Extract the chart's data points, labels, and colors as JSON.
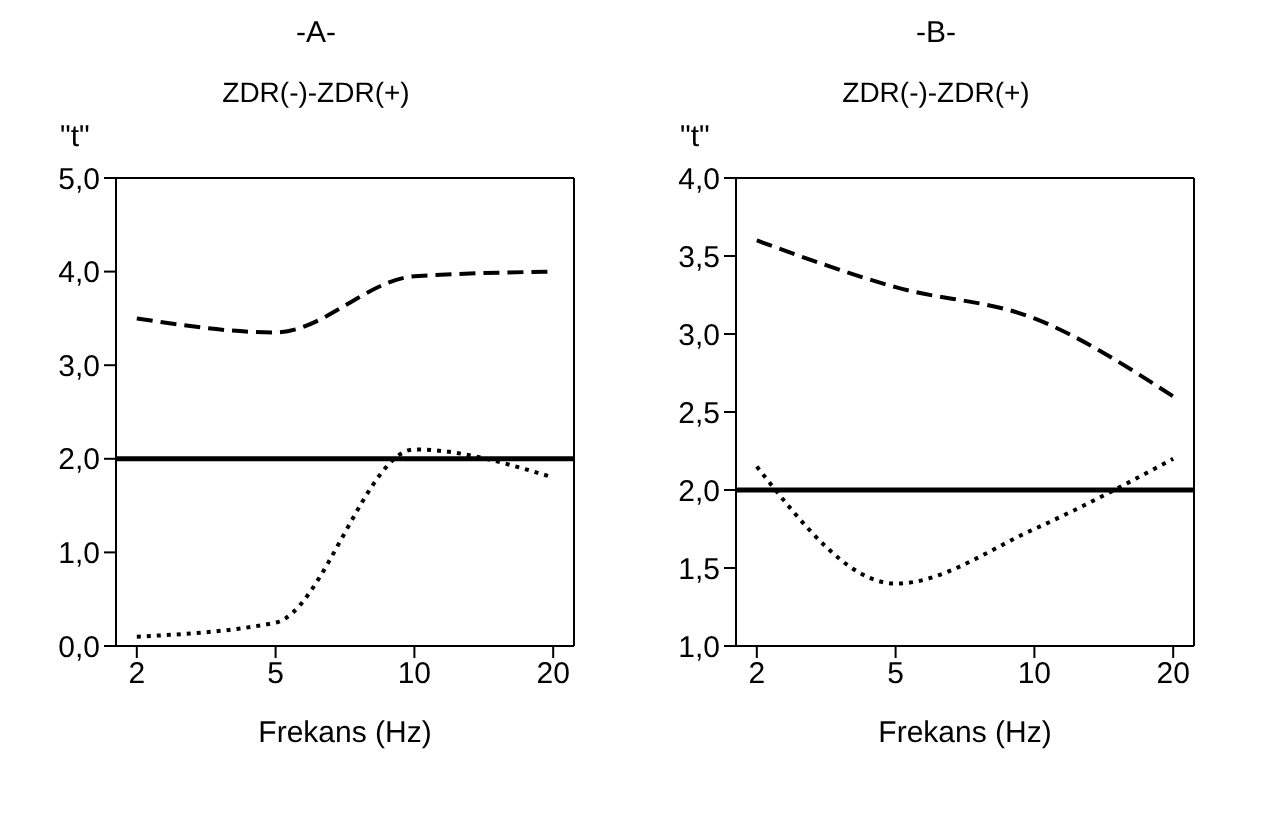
{
  "chart_data": [
    {
      "type": "line",
      "title": "-A-",
      "subtitle": "ZDR(-)-ZDR(+)",
      "ylabel": "\"t\"",
      "xlabel": "Frekans (Hz)",
      "categories": [
        "2",
        "5",
        "10",
        "20"
      ],
      "series": [
        {
          "color": "#000000",
          "line_style": "dashed",
          "values": [
            3.5,
            3.35,
            3.95,
            4.0
          ]
        },
        {
          "color": "#000000",
          "line_style": "dotted",
          "values": [
            0.1,
            0.25,
            2.1,
            1.8
          ]
        }
      ],
      "ref_lines": [
        {
          "axis": "y",
          "value": 2,
          "color": "#000000",
          "line_style": "solid"
        }
      ],
      "ylim": [
        0,
        5
      ],
      "yticks": [
        {
          "value": 0,
          "label": "0,0"
        },
        {
          "value": 1,
          "label": "1,0"
        },
        {
          "value": 2,
          "label": "2,0"
        },
        {
          "value": 3,
          "label": "3,0"
        },
        {
          "value": 4,
          "label": "4,0"
        },
        {
          "value": 5,
          "label": "5,0"
        }
      ],
      "grid": false,
      "legend": false,
      "marker": "none"
    },
    {
      "type": "line",
      "title": "-B-",
      "subtitle": "ZDR(-)-ZDR(+)",
      "ylabel": "\"t\"",
      "xlabel": "Frekans (Hz)",
      "categories": [
        "2",
        "5",
        "10",
        "20"
      ],
      "series": [
        {
          "color": "#000000",
          "line_style": "dashed",
          "values": [
            3.6,
            3.3,
            3.1,
            2.6
          ]
        },
        {
          "color": "#000000",
          "line_style": "dotted",
          "values": [
            2.15,
            1.4,
            1.75,
            2.2
          ]
        }
      ],
      "ref_lines": [
        {
          "axis": "y",
          "value": 2,
          "color": "#000000",
          "line_style": "solid"
        }
      ],
      "ylim": [
        1,
        4
      ],
      "yticks": [
        {
          "value": 1,
          "label": "1,0"
        },
        {
          "value": 1.5,
          "label": "1,5"
        },
        {
          "value": 2,
          "label": "2,0"
        },
        {
          "value": 2.5,
          "label": "2,5"
        },
        {
          "value": 3,
          "label": "3,0"
        },
        {
          "value": 3.5,
          "label": "3,5"
        },
        {
          "value": 4,
          "label": "4,0"
        }
      ],
      "grid": false,
      "legend": false,
      "marker": "none"
    }
  ]
}
